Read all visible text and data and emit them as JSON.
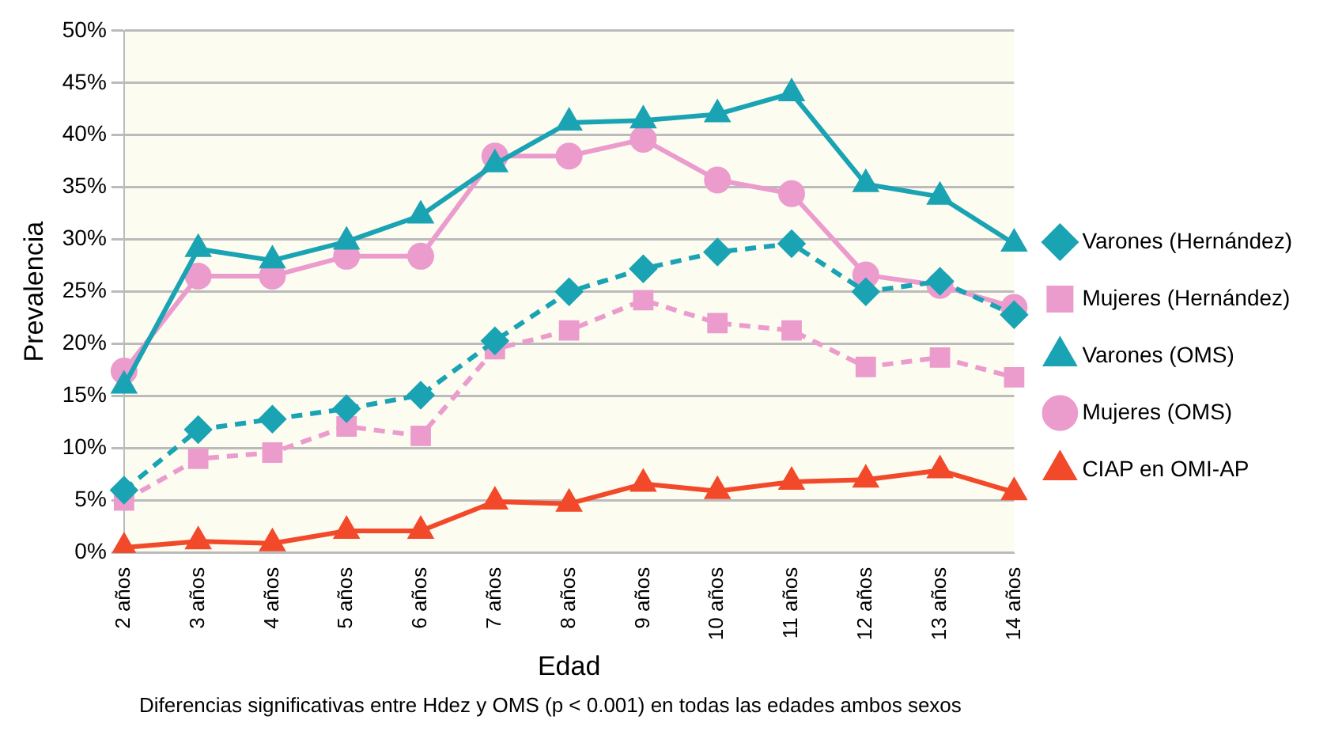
{
  "chart_data": {
    "type": "line",
    "xlabel": "Edad",
    "ylabel": "Prevalencia",
    "categories": [
      "2 años",
      "3 años",
      "4 años",
      "5 años",
      "6 años",
      "7 años",
      "8 años",
      "9 años",
      "10 años",
      "11 años",
      "12 años",
      "13 años",
      "14 años"
    ],
    "series": [
      {
        "name": "Varones (Hernández)",
        "color": "#1aa3b3",
        "marker": "diamond",
        "line_style": "dashed",
        "values": [
          6,
          11.8,
          12.8,
          13.8,
          15.1,
          20.3,
          25,
          27.2,
          28.8,
          29.6,
          25,
          26,
          22.8
        ]
      },
      {
        "name": "Mujeres (Hernández)",
        "color": "#eb9ccd",
        "marker": "square",
        "line_style": "dashed",
        "values": [
          5,
          9,
          9.6,
          12.1,
          11.2,
          19.5,
          21.3,
          24.2,
          22,
          21.3,
          17.8,
          18.7,
          16.8
        ]
      },
      {
        "name": "Varones (OMS)",
        "color": "#1aa3b3",
        "marker": "triangle",
        "line_style": "solid",
        "values": [
          16,
          29.1,
          28,
          29.8,
          32.3,
          37.2,
          41.2,
          41.4,
          42,
          44,
          35.3,
          34.1,
          29.6
        ]
      },
      {
        "name": "Mujeres (OMS)",
        "color": "#eb9ccd",
        "marker": "circle",
        "line_style": "solid",
        "values": [
          17.4,
          26.5,
          26.5,
          28.4,
          28.4,
          38,
          38,
          39.6,
          35.7,
          34.4,
          26.6,
          25.6,
          23.5
        ]
      },
      {
        "name": "CIAP en OMI-AP",
        "color": "#f2492a",
        "marker": "triangle",
        "line_style": "solid",
        "values": [
          0.5,
          1.1,
          0.9,
          2.1,
          2.1,
          4.9,
          4.7,
          6.6,
          5.9,
          6.8,
          7,
          7.9,
          5.8
        ]
      }
    ],
    "ylim": [
      0,
      50
    ],
    "yticks": [
      {
        "value": 0,
        "label": "0%"
      },
      {
        "value": 5,
        "label": "5%"
      },
      {
        "value": 10,
        "label": "10%"
      },
      {
        "value": 15,
        "label": "15%"
      },
      {
        "value": 20,
        "label": "20%"
      },
      {
        "value": 25,
        "label": "25%"
      },
      {
        "value": 30,
        "label": "30%"
      },
      {
        "value": 35,
        "label": "35%"
      },
      {
        "value": 40,
        "label": "40%"
      },
      {
        "value": 45,
        "label": "45%"
      },
      {
        "value": 50,
        "label": "50%"
      }
    ],
    "grid": "y",
    "legend": "right",
    "annotations": [
      "Diferencias significativas entre Hdez y OMS (p < 0.001) en todas las edades ambos sexos"
    ]
  }
}
